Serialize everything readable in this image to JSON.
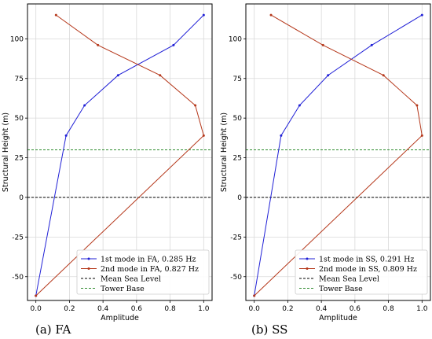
{
  "chart_data": [
    {
      "type": "line",
      "caption": "(a) FA",
      "xlabel": "Amplitude",
      "ylabel": "Structural Height (m)",
      "xlim": [
        -0.05,
        1.05
      ],
      "ylim": [
        -65,
        122
      ],
      "xticks": [
        0.0,
        0.2,
        0.4,
        0.6,
        0.8,
        1.0
      ],
      "yticks": [
        -50,
        -25,
        0,
        25,
        50,
        75,
        100
      ],
      "grid": true,
      "legend_position": "lower-right",
      "series": [
        {
          "name": "1st mode in FA, 0.285 Hz",
          "color": "#1f1fd6",
          "x": [
            0.0,
            0.18,
            0.29,
            0.49,
            0.82,
            1.0
          ],
          "y": [
            -62,
            39,
            58,
            77,
            96,
            115
          ]
        },
        {
          "name": "2nd mode in FA, 0.827 Hz",
          "color": "#b5371a",
          "x": [
            0.0,
            1.0,
            0.95,
            0.74,
            0.37,
            0.12
          ],
          "y": [
            -62,
            39,
            58,
            77,
            96,
            115
          ]
        }
      ],
      "reference_lines": [
        {
          "name": "Mean Sea Level",
          "y": 0,
          "color": "#000000"
        },
        {
          "name": "Tower Base",
          "y": 30,
          "color": "#2e8b2e"
        }
      ]
    },
    {
      "type": "line",
      "caption": "(b) SS",
      "xlabel": "Amplitude",
      "ylabel": "Structural Height (m)",
      "xlim": [
        -0.05,
        1.05
      ],
      "ylim": [
        -65,
        122
      ],
      "xticks": [
        0.0,
        0.2,
        0.4,
        0.6,
        0.8,
        1.0
      ],
      "yticks": [
        -50,
        -25,
        0,
        25,
        50,
        75,
        100
      ],
      "grid": true,
      "legend_position": "lower-right",
      "series": [
        {
          "name": "1st mode in SS, 0.291 Hz",
          "color": "#1f1fd6",
          "x": [
            0.0,
            0.16,
            0.27,
            0.44,
            0.7,
            1.0
          ],
          "y": [
            -62,
            39,
            58,
            77,
            96,
            115
          ]
        },
        {
          "name": "2nd mode in SS, 0.809 Hz",
          "color": "#b5371a",
          "x": [
            0.0,
            1.0,
            0.97,
            0.77,
            0.41,
            0.1
          ],
          "y": [
            -62,
            39,
            58,
            77,
            96,
            115
          ]
        }
      ],
      "reference_lines": [
        {
          "name": "Mean Sea Level",
          "y": 0,
          "color": "#000000"
        },
        {
          "name": "Tower Base",
          "y": 30,
          "color": "#2e8b2e"
        }
      ]
    }
  ]
}
